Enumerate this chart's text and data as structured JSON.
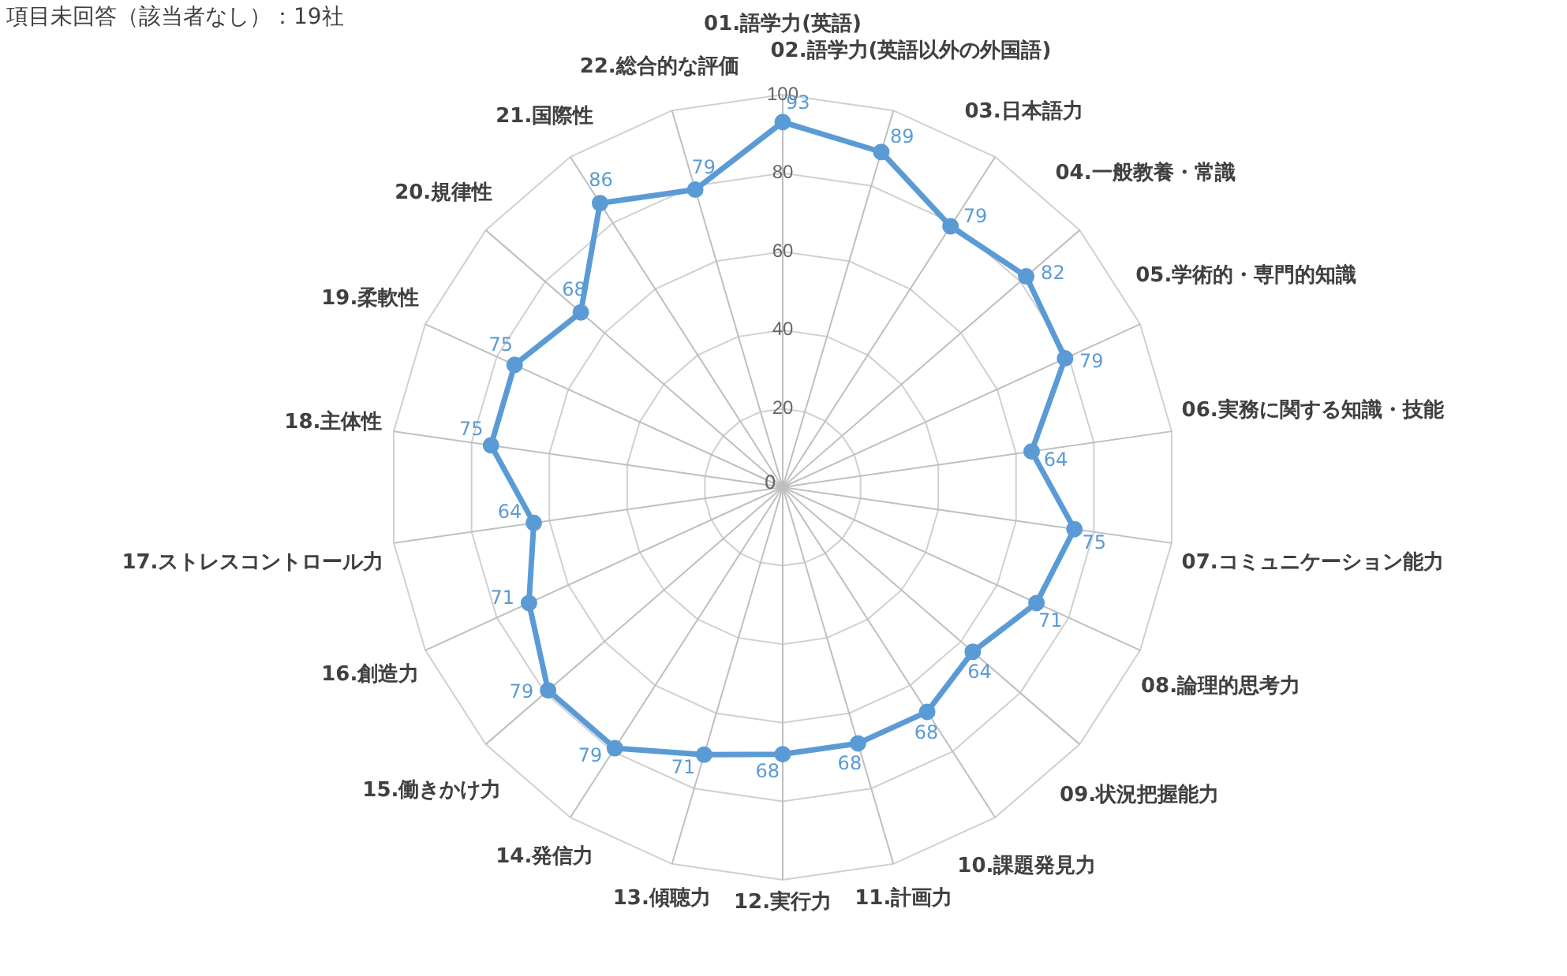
{
  "chart_data": {
    "type": "radar",
    "annotations": [
      "項目未回答（該当者なし）：19社"
    ],
    "categories": [
      "01.語学力(英語)",
      "02.語学力(英語以外の外国語)",
      "03.日本語力",
      "04.一般教養・常識",
      "05.学術的・専門的知識",
      "06.実務に関する知識・技能",
      "07.コミュニケーション能力",
      "08.論理的思考力",
      "09.状況把握能力",
      "10.課題発見力",
      "11.計画力",
      "12.実行力",
      "13.傾聴力",
      "14.発信力",
      "15.働きかけ力",
      "16.創造力",
      "17.ストレスコントロール力",
      "18.主体性",
      "19.柔軟性",
      "20.規律性",
      "21.国際性",
      "22.総合的な評価"
    ],
    "series": [
      {
        "color": "#5b9bd5",
        "values": [
          93,
          89,
          79,
          82,
          79,
          64,
          75,
          71,
          64,
          68,
          68,
          68,
          71,
          79,
          79,
          71,
          64,
          75,
          75,
          68,
          86,
          79
        ]
      }
    ],
    "ylim": [
      0,
      100
    ],
    "yticks": [
      0,
      20,
      40,
      60,
      80,
      100
    ],
    "grid": true,
    "legend": false,
    "marker": "circle",
    "line_style": "solid",
    "data_labels": true
  }
}
